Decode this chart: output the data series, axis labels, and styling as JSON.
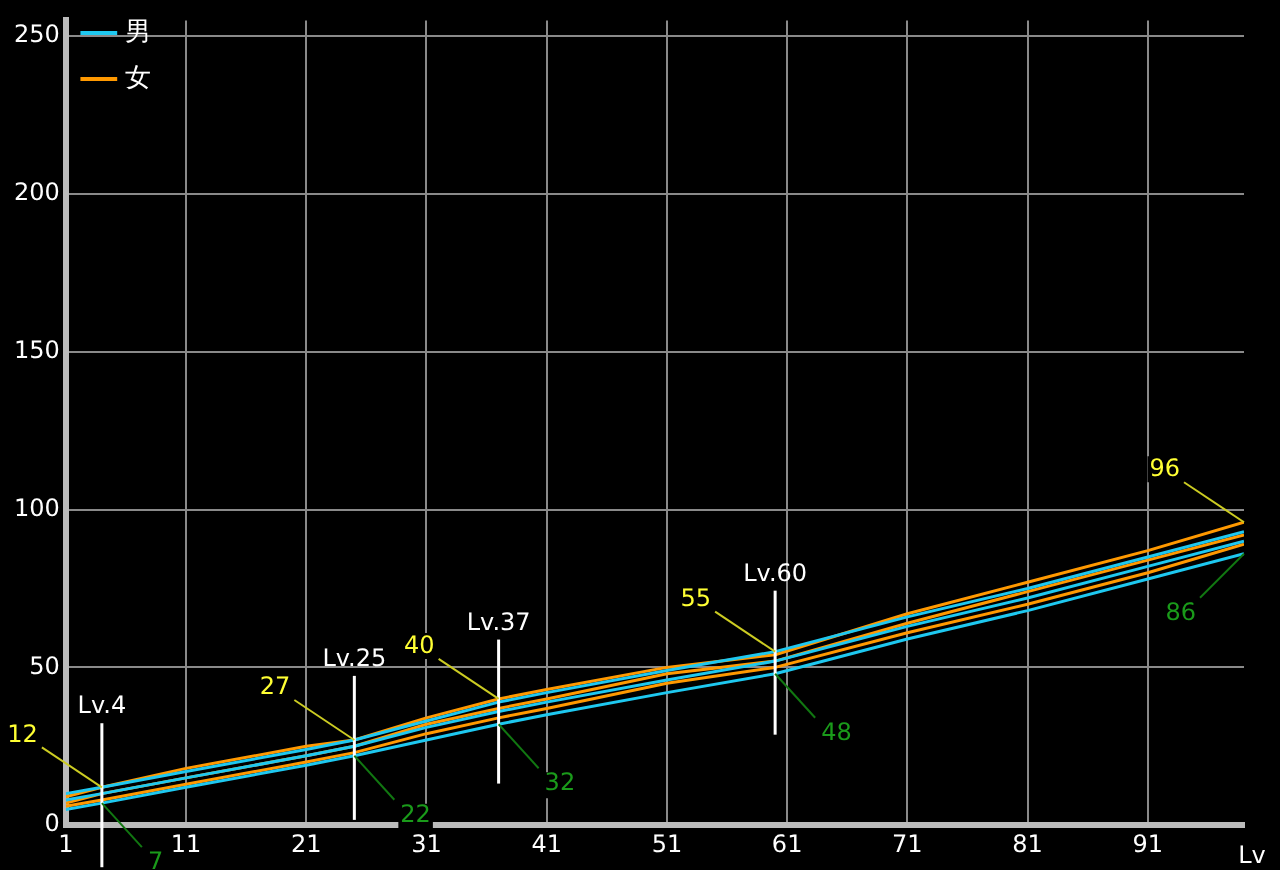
{
  "chart_data": {
    "type": "line",
    "xlabel": "Lv",
    "x": [
      1,
      4,
      11,
      21,
      25,
      31,
      37,
      41,
      51,
      60,
      71,
      81,
      91,
      99
    ],
    "series": [
      {
        "name": "男",
        "color": "#1ec8f0",
        "values": [
          10,
          12,
          17,
          24,
          27,
          33,
          39,
          42,
          49,
          55,
          66,
          75,
          85,
          93
        ]
      },
      {
        "color": "#1ec8f0",
        "values": [
          8,
          10,
          15,
          22,
          25,
          31,
          36,
          39,
          46,
          52,
          63,
          72,
          82,
          90
        ]
      },
      {
        "color": "#1ec8f0",
        "values": [
          5,
          7,
          12,
          19,
          22,
          27,
          32,
          35,
          42,
          48,
          59,
          68,
          78,
          86
        ]
      },
      {
        "name": "女",
        "color": "#ff9900",
        "values": [
          9,
          12,
          18,
          25,
          27,
          34,
          40,
          43,
          50,
          54,
          67,
          77,
          87,
          96
        ]
      },
      {
        "color": "#ff9900",
        "values": [
          7,
          10,
          15,
          22,
          25,
          32,
          37,
          40,
          48,
          52,
          64,
          74,
          84,
          92
        ]
      },
      {
        "color": "#ff9900",
        "values": [
          6,
          8,
          13,
          20,
          23,
          29,
          34,
          37,
          45,
          50,
          61,
          70,
          80,
          89
        ]
      }
    ],
    "xlim": [
      1,
      99
    ],
    "xticks": [
      1,
      11,
      21,
      31,
      41,
      51,
      61,
      71,
      81,
      91
    ],
    "ylim": [
      0,
      255
    ],
    "yticks": [
      0,
      50,
      100,
      150,
      200,
      250
    ],
    "grid": true,
    "legend": "top left",
    "marker": "none",
    "line_style": "solid",
    "ref_lines": [
      {
        "axis": "x",
        "value": 4,
        "label": "Lv.4"
      },
      {
        "axis": "x",
        "value": 25,
        "label": "Lv.25"
      },
      {
        "axis": "x",
        "value": 37,
        "label": "Lv.37"
      },
      {
        "axis": "x",
        "value": 60,
        "label": "Lv.60"
      }
    ],
    "annotations": [
      {
        "text": "12",
        "x": 4,
        "y": 12
      },
      {
        "text": "7",
        "x": 4,
        "y": 7
      },
      {
        "text": "27",
        "x": 25,
        "y": 27
      },
      {
        "text": "22",
        "x": 25,
        "y": 22
      },
      {
        "text": "40",
        "x": 37,
        "y": 40
      },
      {
        "text": "32",
        "x": 37,
        "y": 32
      },
      {
        "text": "55",
        "x": 60,
        "y": 55
      },
      {
        "text": "48",
        "x": 60,
        "y": 48
      },
      {
        "text": "96",
        "x": 99,
        "y": 96
      },
      {
        "text": "86",
        "x": 99,
        "y": 86
      }
    ]
  }
}
